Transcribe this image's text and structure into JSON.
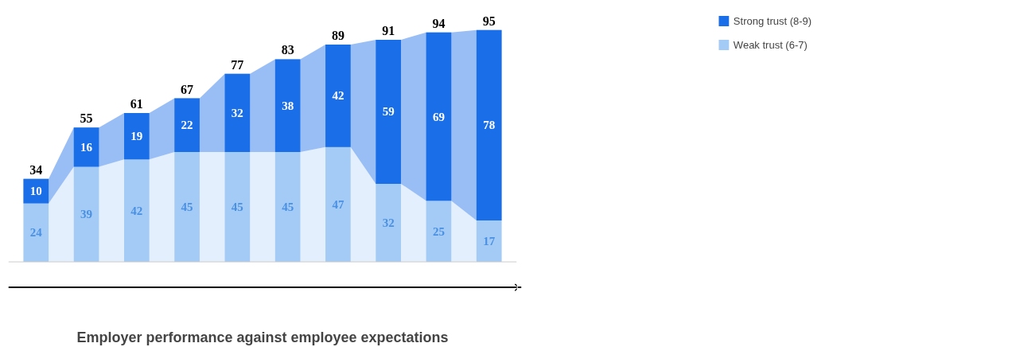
{
  "chart_data": {
    "type": "bar",
    "stacked": true,
    "xlabel": "Employer performance against employee expectations",
    "categories": [
      null,
      null,
      null,
      null,
      null,
      null,
      null,
      null,
      null,
      null
    ],
    "series": [
      {
        "name": "Weak trust (6-7)",
        "color": "#a3cbf6",
        "values": [
          24,
          39,
          42,
          45,
          45,
          45,
          47,
          32,
          25,
          17
        ]
      },
      {
        "name": "Strong trust (8-9)",
        "color": "#1a6ee8",
        "values": [
          10,
          16,
          19,
          22,
          32,
          38,
          42,
          59,
          69,
          78
        ]
      }
    ],
    "totals": [
      "34",
      "55",
      "61",
      "67",
      "77",
      "83",
      "89",
      "91",
      "94",
      "95"
    ],
    "data_labels": true,
    "legend": "top right",
    "grid": false
  }
}
